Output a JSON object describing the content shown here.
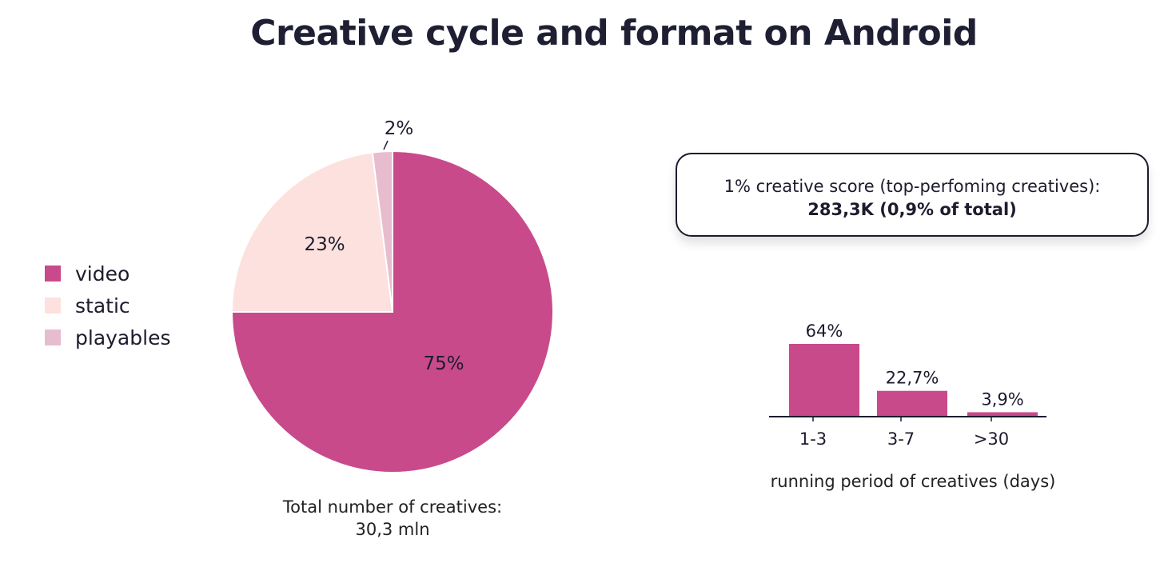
{
  "title": "Creative cycle and format on Android",
  "colors": {
    "video": "#C84A8A",
    "static": "#FCE1DE",
    "playables": "#E8BCCF",
    "bar": "#C84A8A"
  },
  "chart_data": [
    {
      "type": "pie",
      "labels": [
        "video",
        "static",
        "playables"
      ],
      "values": [
        75,
        23,
        2
      ],
      "value_labels": [
        "75%",
        "23%",
        "2%"
      ],
      "legend": "left",
      "caption_line1": "Total number of creatives:",
      "caption_line2": "30,3 mln"
    },
    {
      "type": "bar",
      "categories": [
        "1-3",
        "3-7",
        ">30"
      ],
      "values": [
        64,
        22.7,
        3.9
      ],
      "value_labels": [
        "64%",
        "22,7%",
        "3,9%"
      ],
      "xlabel": "running period of creatives (days)",
      "ylabel": "",
      "ylim": [
        0,
        64
      ]
    }
  ],
  "score_box": {
    "line1": "1% creative score (top-perfoming creatives):",
    "line2": "283,3K (0,9% of total)"
  }
}
